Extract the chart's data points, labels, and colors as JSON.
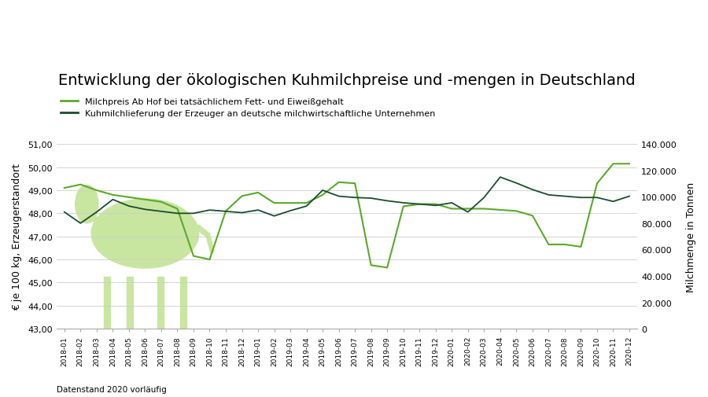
{
  "title": "Entwicklung der ökologischen Kuhmilchpreise und -mengen in Deutschland",
  "legend_price": "Milchpreis Ab Hof bei tatsächlichem Fett- und Eiweißgehalt",
  "legend_volume": "Kuhmilchlieferung der Erzeuger an deutsche milchwirtschaftliche Unternehmen",
  "ylabel_left": "€ je 100 kg, Erzeugerstandort",
  "ylabel_right": "Milchmenge in Tonnen",
  "footnote1": "Datenstand 2020 vorläufig",
  "ylim_left": [
    43.0,
    51.0
  ],
  "ylim_right": [
    0,
    140000
  ],
  "yticks_left": [
    43.0,
    44.0,
    45.0,
    46.0,
    47.0,
    48.0,
    49.0,
    50.0,
    51.0
  ],
  "yticks_right": [
    0,
    20000,
    40000,
    60000,
    80000,
    100000,
    120000,
    140000
  ],
  "ytick_labels_right": [
    "0",
    "20.000",
    "40.000",
    "60.000",
    "80.000",
    "100.000",
    "120.000",
    "140.000"
  ],
  "ytick_labels_left": [
    "43,00",
    "44,00",
    "45,00",
    "46,00",
    "47,00",
    "48,00",
    "49,00",
    "50,00",
    "51,00"
  ],
  "x_labels": [
    "2018-01",
    "2018-02",
    "2018-03",
    "2018-04",
    "2018-05",
    "2018-06",
    "2018-07",
    "2018-08",
    "2018-09",
    "2018-10",
    "2018-11",
    "2018-12",
    "2019-01",
    "2019-02",
    "2019-03",
    "2019-04",
    "2019-05",
    "2019-06",
    "2019-07",
    "2019-08",
    "2019-09",
    "2019-10",
    "2019-11",
    "2019-12",
    "2020-01",
    "2020-02",
    "2020-03",
    "2020-04",
    "2020-05",
    "2020-06",
    "2020-07",
    "2020-08",
    "2020-09",
    "2020-10",
    "2020-11",
    "2020-12"
  ],
  "price_data": [
    49.1,
    49.25,
    49.0,
    48.8,
    48.7,
    48.6,
    48.5,
    48.2,
    46.15,
    46.0,
    48.1,
    48.75,
    48.9,
    48.45,
    48.45,
    48.45,
    48.8,
    49.35,
    49.3,
    45.75,
    45.65,
    48.3,
    48.4,
    48.4,
    48.2,
    48.2,
    48.2,
    48.15,
    48.1,
    47.9,
    46.65,
    46.65,
    46.55,
    49.3,
    50.15,
    50.15
  ],
  "volume_data": [
    88500,
    80000,
    88500,
    98000,
    93000,
    90500,
    89000,
    87500,
    87500,
    90000,
    89000,
    88000,
    90000,
    85500,
    89500,
    93000,
    105000,
    100500,
    99500,
    99000,
    97000,
    95500,
    94500,
    93500,
    95500,
    88500,
    99500,
    115000,
    110500,
    105500,
    101500,
    100500,
    99500,
    99500,
    96500,
    100500
  ],
  "price_color": "#5aaa28",
  "volume_color": "#1a4d2e",
  "cow_color": "#c8e6a0",
  "background_color": "#ffffff",
  "grid_color": "#cccccc",
  "title_fontsize": 14,
  "axis_fontsize": 8,
  "legend_fontsize": 8
}
